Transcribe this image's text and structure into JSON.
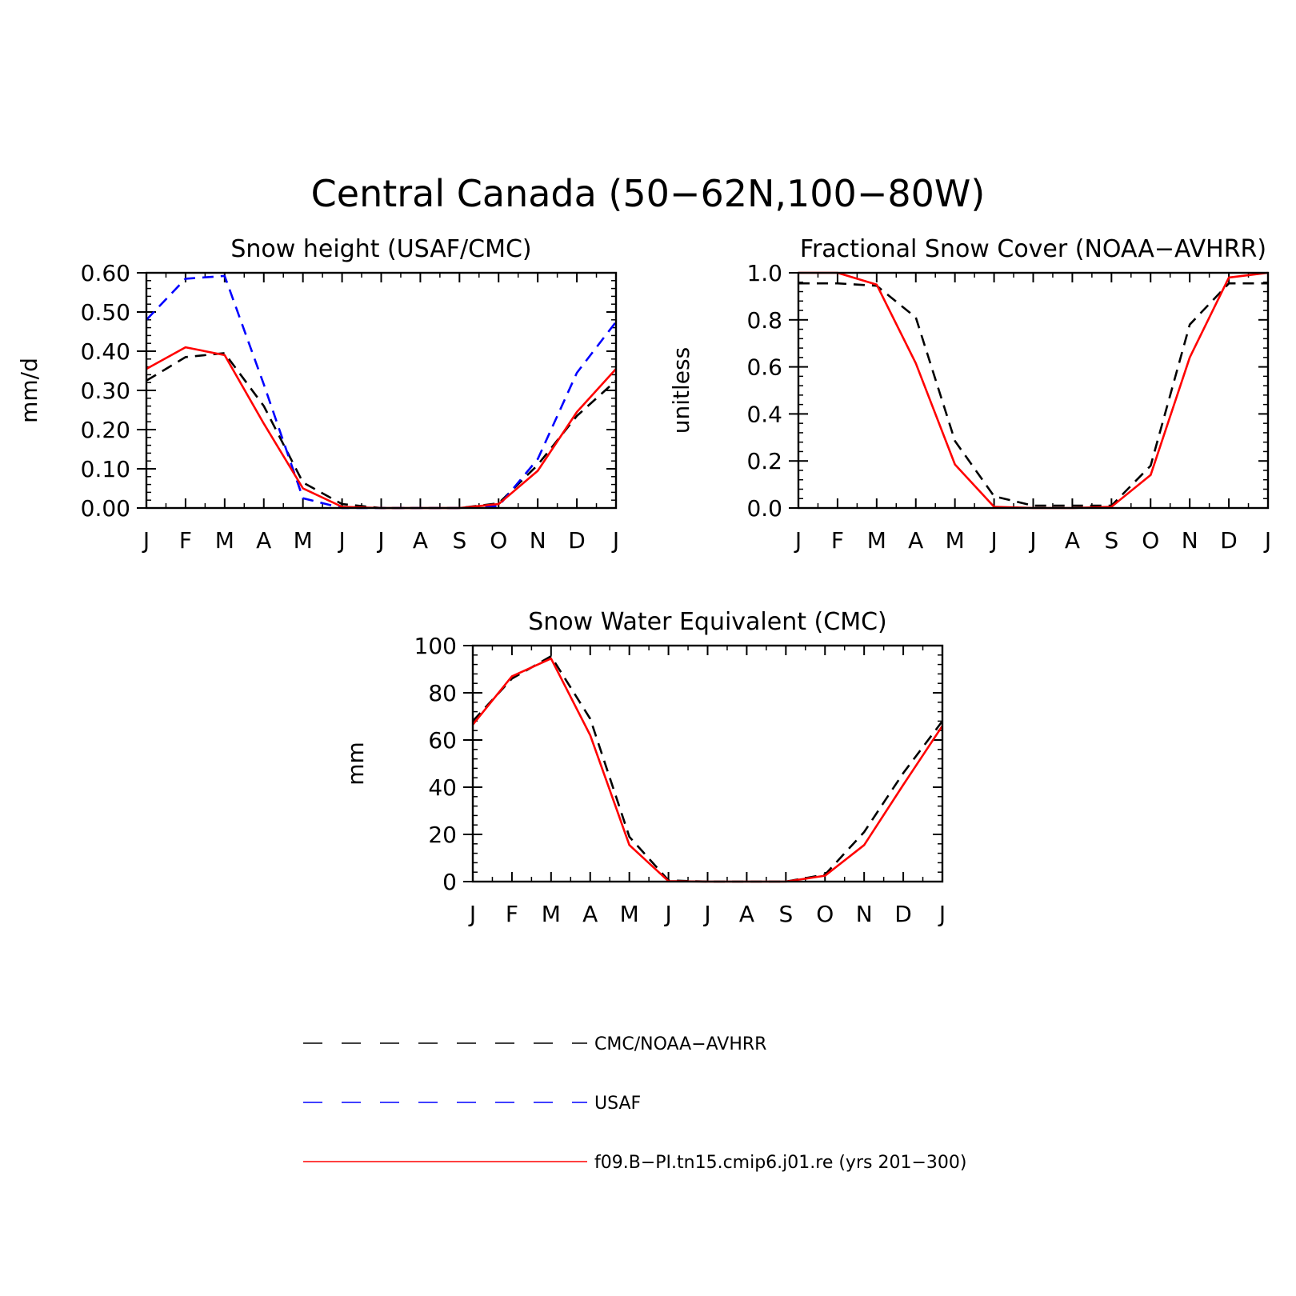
{
  "title": "Central Canada (50−62N,100−80W)",
  "colors": {
    "obs": "#000000",
    "usaf": "#0000ff",
    "model": "#ff0000"
  },
  "chart_data": [
    {
      "type": "line",
      "title": "Snow height (USAF/CMC)",
      "ylabel": "mm/d",
      "xlabel": "",
      "categories": [
        "J",
        "F",
        "M",
        "A",
        "M",
        "J",
        "J",
        "A",
        "S",
        "O",
        "N",
        "D",
        "J"
      ],
      "ylim": [
        0,
        0.6
      ],
      "yticks": [
        "0.00",
        "0.10",
        "0.20",
        "0.30",
        "0.40",
        "0.50",
        "0.60"
      ],
      "series": [
        {
          "name": "CMC/NOAA−AVHRR",
          "style": "dashed",
          "color": "#000000",
          "values": [
            0.325,
            0.385,
            0.395,
            0.26,
            0.065,
            0.01,
            0.0,
            0.0,
            0.0,
            0.012,
            0.11,
            0.235,
            0.325
          ]
        },
        {
          "name": "USAF",
          "style": "dashed",
          "color": "#0000ff",
          "values": [
            0.48,
            0.585,
            0.592,
            0.315,
            0.025,
            0.0,
            0.0,
            0.0,
            0.0,
            0.005,
            0.125,
            0.345,
            0.475
          ]
        },
        {
          "name": "f09.B−PI.tn15.cmip6.j01.re (yrs 201−300)",
          "style": "solid",
          "color": "#ff0000",
          "values": [
            0.355,
            0.41,
            0.39,
            0.215,
            0.05,
            0.003,
            0.0,
            0.0,
            0.0,
            0.01,
            0.095,
            0.245,
            0.355
          ]
        }
      ]
    },
    {
      "type": "line",
      "title": "Fractional Snow Cover (NOAA−AVHRR)",
      "ylabel": "unitless",
      "xlabel": "",
      "categories": [
        "J",
        "F",
        "M",
        "A",
        "M",
        "J",
        "J",
        "A",
        "S",
        "O",
        "N",
        "D",
        "J"
      ],
      "ylim": [
        0,
        1.0
      ],
      "yticks": [
        "0.0",
        "0.2",
        "0.4",
        "0.6",
        "0.8",
        "1.0"
      ],
      "series": [
        {
          "name": "CMC/NOAA−AVHRR",
          "style": "dashed",
          "color": "#000000",
          "values": [
            0.955,
            0.955,
            0.945,
            0.81,
            0.285,
            0.05,
            0.01,
            0.01,
            0.01,
            0.18,
            0.78,
            0.955,
            0.955
          ]
        },
        {
          "name": "f09.B−PI.tn15.cmip6.j01.re (yrs 201−300)",
          "style": "solid",
          "color": "#ff0000",
          "values": [
            1.0,
            1.0,
            0.95,
            0.615,
            0.185,
            0.005,
            0.0,
            0.0,
            0.005,
            0.14,
            0.64,
            0.98,
            1.0
          ]
        }
      ]
    },
    {
      "type": "line",
      "title": "Snow Water Equivalent (CMC)",
      "ylabel": "mm",
      "xlabel": "",
      "categories": [
        "J",
        "F",
        "M",
        "A",
        "M",
        "J",
        "J",
        "A",
        "S",
        "O",
        "N",
        "D",
        "J"
      ],
      "ylim": [
        0,
        100
      ],
      "yticks": [
        "0",
        "20",
        "40",
        "60",
        "80",
        "100"
      ],
      "series": [
        {
          "name": "CMC/NOAA−AVHRR",
          "style": "dashed",
          "color": "#000000",
          "values": [
            68,
            86,
            95.5,
            69,
            19,
            0.5,
            0,
            0,
            0,
            3,
            21,
            46,
            68
          ]
        },
        {
          "name": "f09.B−PI.tn15.cmip6.j01.re (yrs 201−300)",
          "style": "solid",
          "color": "#ff0000",
          "values": [
            66.5,
            87,
            94.5,
            62,
            15.5,
            0.2,
            0,
            0,
            0,
            2.5,
            15.5,
            41,
            66
          ]
        }
      ]
    }
  ],
  "legend": [
    {
      "label": "CMC/NOAA−AVHRR",
      "style": "dashed",
      "color": "#000000"
    },
    {
      "label": "USAF",
      "style": "dashed",
      "color": "#0000ff"
    },
    {
      "label": "f09.B−PI.tn15.cmip6.j01.re (yrs 201−300)",
      "style": "solid",
      "color": "#ff0000"
    }
  ]
}
